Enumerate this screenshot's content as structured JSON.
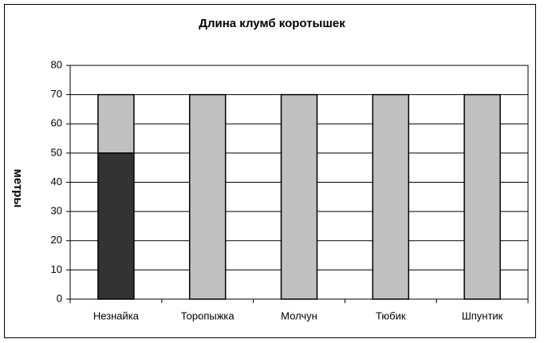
{
  "chart_data": {
    "type": "stacked-bar",
    "title": "Длина клумб коротышек",
    "y_label": "метры",
    "categories": [
      "Незнайка",
      "Торопыжка",
      "Молчун",
      "Тюбик",
      "Шпунтик"
    ],
    "series": [
      {
        "color": "#333333",
        "values": [
          50,
          null,
          null,
          null,
          null
        ]
      },
      {
        "color": "#c0c0c0",
        "values": [
          20,
          70,
          70,
          70,
          70
        ]
      }
    ],
    "ylim": [
      0,
      80
    ],
    "yticks": [
      0,
      10,
      20,
      30,
      40,
      50,
      60,
      70,
      80
    ],
    "grid": true
  }
}
